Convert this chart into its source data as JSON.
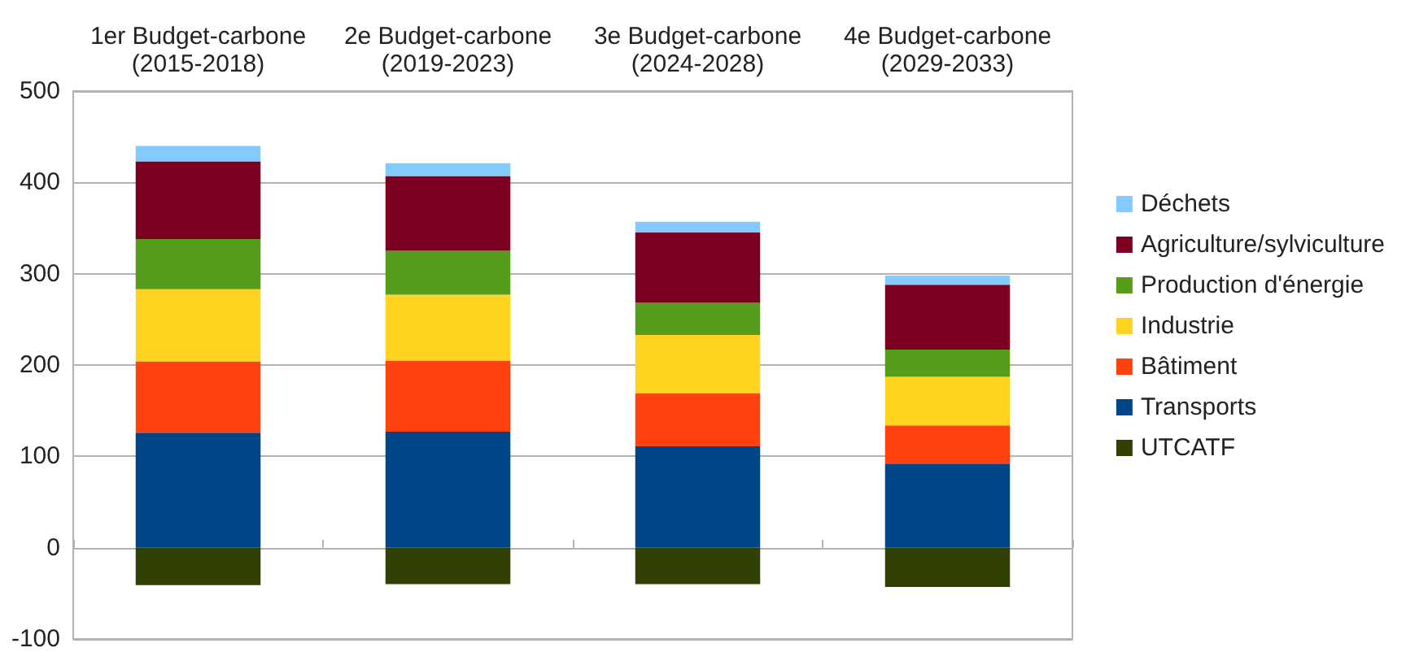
{
  "chart_data": {
    "type": "bar",
    "stacked": true,
    "categories": [
      "1er Budget-carbone\n(2015-2018)",
      "2e Budget-carbone\n(2019-2023)",
      "3e Budget-carbone\n(2024-2028)",
      "4e Budget-carbone\n(2029-2033)"
    ],
    "series": [
      {
        "name": "UTCATF",
        "color": "#314004",
        "values": [
          -41,
          -40,
          -40,
          -43
        ]
      },
      {
        "name": "Transports",
        "color": "#004586",
        "values": [
          126,
          127,
          111,
          92
        ]
      },
      {
        "name": "Bâtiment",
        "color": "#ff420e",
        "values": [
          78,
          78,
          58,
          42
        ]
      },
      {
        "name": "Industrie",
        "color": "#ffd320",
        "values": [
          79,
          72,
          64,
          53
        ]
      },
      {
        "name": "Production d'énergie",
        "color": "#579d1c",
        "values": [
          55,
          48,
          35,
          30
        ]
      },
      {
        "name": "Agriculture/sylviculture",
        "color": "#7e0021",
        "values": [
          85,
          82,
          77,
          71
        ]
      },
      {
        "name": "Déchets",
        "color": "#83caff",
        "values": [
          17,
          14,
          12,
          10
        ]
      }
    ],
    "ylim": [
      -100,
      500
    ],
    "yticks": [
      -100,
      0,
      100,
      200,
      300,
      400,
      500
    ],
    "grid": "y",
    "legend": "right"
  }
}
